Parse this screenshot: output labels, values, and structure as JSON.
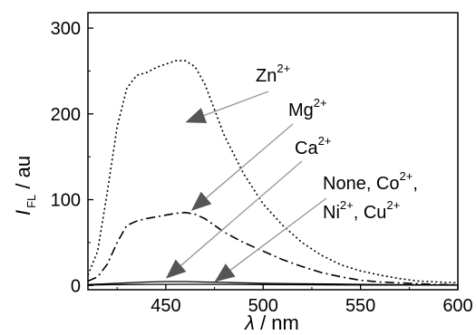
{
  "chart_data": {
    "type": "line",
    "xlabel": {
      "symbol": "λ",
      "unit": " / nm"
    },
    "ylabel": {
      "symbol": "I",
      "subscript": "FL",
      "unit": " / au"
    },
    "xlim": [
      410,
      600
    ],
    "ylim": [
      -5,
      318
    ],
    "x_ticks": [
      450,
      500,
      550,
      600
    ],
    "y_ticks": [
      0,
      100,
      200,
      300
    ],
    "x_tick_labels": [
      "450",
      "500",
      "550",
      "600"
    ],
    "y_tick_labels": [
      "0",
      "100",
      "200",
      "300"
    ],
    "grid": false,
    "series": [
      {
        "key": "zn",
        "style": "dotted",
        "x": [
          410,
          415,
          420,
          425,
          430,
          435,
          440,
          445,
          450,
          455,
          460,
          465,
          470,
          475,
          480,
          490,
          500,
          510,
          520,
          530,
          540,
          550,
          560,
          570,
          580,
          590,
          600
        ],
        "y": [
          12,
          40,
          110,
          185,
          230,
          245,
          248,
          254,
          258,
          262,
          262,
          255,
          235,
          205,
          175,
          130,
          95,
          70,
          50,
          35,
          24,
          17,
          12,
          8,
          5,
          4,
          3
        ]
      },
      {
        "key": "mg",
        "style": "dashdot",
        "x": [
          410,
          415,
          420,
          425,
          430,
          435,
          440,
          445,
          450,
          455,
          460,
          465,
          470,
          475,
          480,
          490,
          500,
          510,
          520,
          530,
          540,
          550,
          560,
          570,
          580,
          590,
          600
        ],
        "y": [
          5,
          10,
          25,
          50,
          70,
          75,
          78,
          80,
          82,
          84,
          85,
          83,
          78,
          70,
          62,
          50,
          40,
          30,
          22,
          15,
          10,
          6,
          4,
          3,
          2,
          1,
          1
        ]
      },
      {
        "key": "ca",
        "style": "solid",
        "x": [
          410,
          420,
          430,
          440,
          450,
          460,
          470,
          480,
          490,
          500,
          520,
          540,
          560,
          580,
          600
        ],
        "y": [
          1,
          2,
          3,
          4,
          4.5,
          4.5,
          4,
          3.5,
          3,
          2.5,
          2,
          1.5,
          1,
          0.8,
          0.5
        ]
      },
      {
        "key": "none",
        "style": "solid",
        "x": [
          410,
          420,
          440,
          460,
          480,
          500,
          520,
          540,
          560,
          580,
          600
        ],
        "y": [
          0.5,
          0.8,
          1.2,
          1.3,
          1.2,
          1,
          0.8,
          0.6,
          0.5,
          0.4,
          0.3
        ]
      }
    ],
    "annotations": [
      {
        "base": "Zn",
        "sup": "2+",
        "target": [
          460,
          190
        ]
      },
      {
        "base": "Mg",
        "sup": "2+",
        "target": [
          463,
          87
        ]
      },
      {
        "base": "Ca",
        "sup": "2+",
        "target": [
          450,
          8
        ]
      },
      {
        "line1": "None, Co",
        "line1_sup": "2+",
        "line1_tail": ",",
        "line2_parts": [
          {
            "base": "Ni",
            "sup": "2+"
          },
          {
            "base": ", Cu",
            "sup": "2+"
          }
        ],
        "target": [
          475,
          4
        ]
      }
    ]
  }
}
